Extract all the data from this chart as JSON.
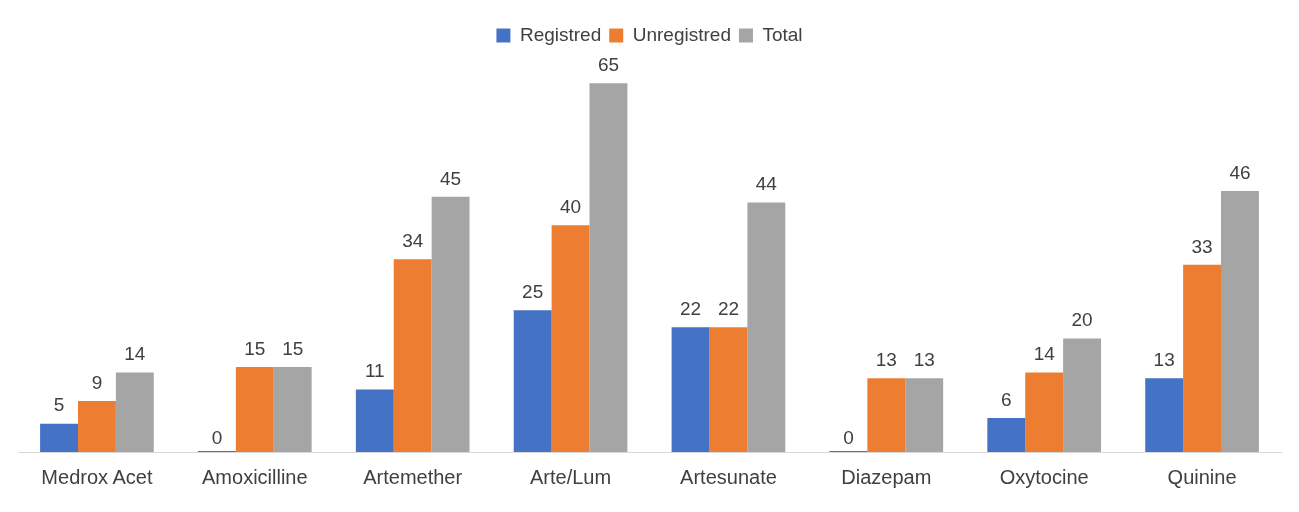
{
  "chart_data": {
    "type": "bar",
    "categories": [
      "Medrox Acet",
      "Amoxicilline",
      "Artemether",
      "Arte/Lum",
      "Artesunate",
      "Diazepam",
      "Oxytocine",
      "Quinine"
    ],
    "series": [
      {
        "name": "Registred",
        "color": "#4472c4",
        "values": [
          5,
          0,
          11,
          25,
          22,
          0,
          6,
          13
        ]
      },
      {
        "name": "Unregistred",
        "color": "#ed7d31",
        "values": [
          9,
          15,
          34,
          40,
          22,
          13,
          14,
          33
        ]
      },
      {
        "name": "Total",
        "color": "#a5a5a5",
        "values": [
          14,
          15,
          45,
          65,
          44,
          13,
          20,
          46
        ]
      }
    ],
    "data_labels": true,
    "legend": "top",
    "grid": false,
    "tick_labels": "x"
  }
}
